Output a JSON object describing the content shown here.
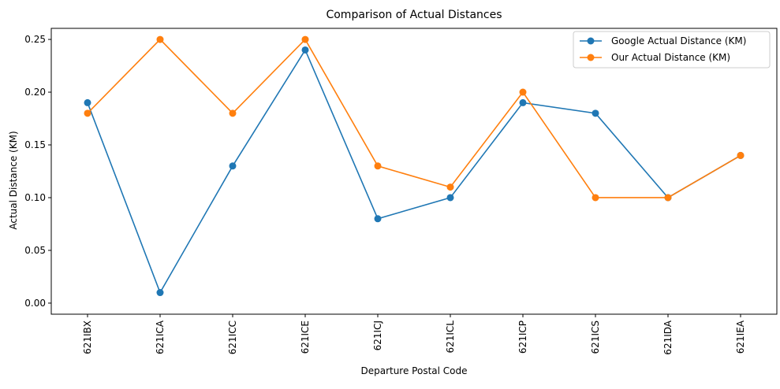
{
  "chart_data": {
    "type": "line",
    "title": "Comparison of Actual Distances",
    "xlabel": "Departure Postal Code",
    "ylabel": "Actual Distance (KM)",
    "categories": [
      "621IBX",
      "621ICA",
      "621ICC",
      "621ICE",
      "621ICJ",
      "621ICL",
      "621ICP",
      "621ICS",
      "621IDA",
      "621IEA"
    ],
    "ylim": [
      -0.0105,
      0.2605
    ],
    "yticks": [
      0.0,
      0.05,
      0.1,
      0.15,
      0.2,
      0.25
    ],
    "ytick_labels": [
      "0.00",
      "0.05",
      "0.10",
      "0.15",
      "0.20",
      "0.25"
    ],
    "grid": false,
    "legend_position": "top-right",
    "series": [
      {
        "name": "Google Actual Distance (KM)",
        "color": "#1f77b4",
        "values": [
          0.19,
          0.01,
          0.13,
          0.24,
          0.08,
          0.1,
          0.19,
          0.18,
          0.1,
          0.14
        ]
      },
      {
        "name": "Our Actual Distance (KM)",
        "color": "#ff7f0e",
        "values": [
          0.18,
          0.25,
          0.18,
          0.25,
          0.13,
          0.11,
          0.2,
          0.1,
          0.1,
          0.14
        ]
      }
    ]
  }
}
